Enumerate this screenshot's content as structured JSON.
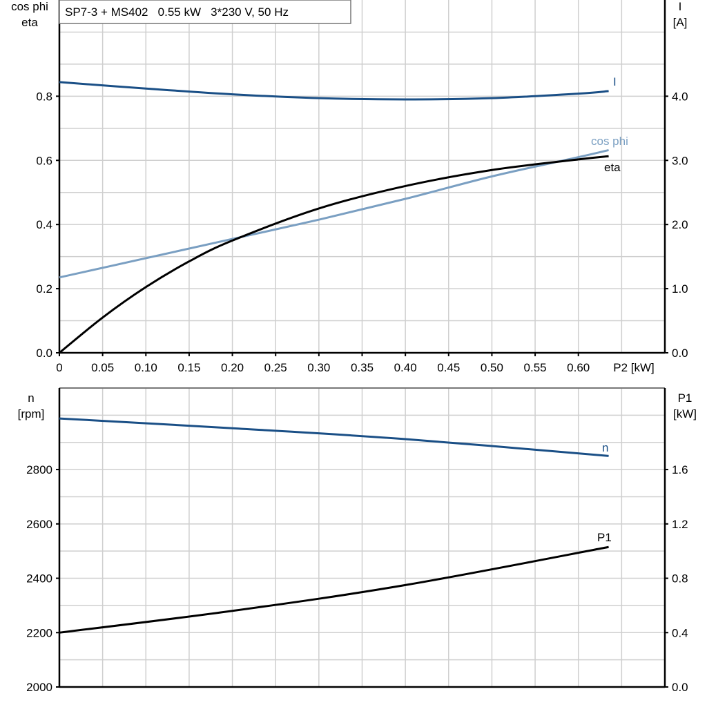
{
  "chart_data": [
    {
      "type": "line",
      "title": "SP7-3 + MS402   0.55 kW   3*230 V, 50 Hz",
      "xlabel": "P2 [kW]",
      "ylabel_left": [
        "cos phi",
        "eta"
      ],
      "ylabel_right": [
        "I",
        "[A]"
      ],
      "xlim": [
        0,
        0.7
      ],
      "ylim_left": [
        0,
        1.1
      ],
      "ylim_right": [
        0,
        5.5
      ],
      "grid": true,
      "x_ticks": [
        "0",
        "0.05",
        "0.10",
        "0.15",
        "0.20",
        "0.25",
        "0.30",
        "0.35",
        "0.40",
        "0.45",
        "0.50",
        "0.55",
        "0.60"
      ],
      "y_ticks_left": [
        "0.0",
        "0.2",
        "0.4",
        "0.6",
        "0.8"
      ],
      "y_ticks_right": [
        "0.0",
        "1.0",
        "2.0",
        "3.0",
        "4.0"
      ],
      "series": [
        {
          "name": "I",
          "axis": "right",
          "color": "#1a4f86",
          "x": [
            0,
            0.1,
            0.2,
            0.3,
            0.4,
            0.5,
            0.6,
            0.635
          ],
          "y": [
            4.22,
            4.12,
            4.03,
            3.97,
            3.95,
            3.97,
            4.04,
            4.08
          ]
        },
        {
          "name": "cos phi",
          "axis": "left",
          "color": "#7a9fc2",
          "x": [
            0,
            0.1,
            0.2,
            0.3,
            0.4,
            0.5,
            0.6,
            0.635
          ],
          "y": [
            0.235,
            0.295,
            0.355,
            0.415,
            0.48,
            0.55,
            0.61,
            0.632
          ]
        },
        {
          "name": "eta",
          "axis": "left",
          "color": "#000000",
          "x": [
            0,
            0.05,
            0.1,
            0.15,
            0.2,
            0.3,
            0.4,
            0.5,
            0.6,
            0.635
          ],
          "y": [
            0,
            0.11,
            0.205,
            0.285,
            0.35,
            0.45,
            0.52,
            0.57,
            0.603,
            0.613
          ]
        }
      ]
    },
    {
      "type": "line",
      "ylabel_left": [
        "n",
        "[rpm]"
      ],
      "ylabel_right": [
        "P1",
        "[kW]"
      ],
      "xlim": [
        0,
        0.7
      ],
      "ylim_left": [
        2000,
        3100
      ],
      "ylim_right": [
        0,
        2.2
      ],
      "grid": true,
      "y_ticks_left": [
        "2000",
        "2200",
        "2400",
        "2600",
        "2800"
      ],
      "y_ticks_right": [
        "0.0",
        "0.4",
        "0.8",
        "1.2",
        "1.6"
      ],
      "series": [
        {
          "name": "n",
          "axis": "left",
          "color": "#1a4f86",
          "x": [
            0,
            0.2,
            0.4,
            0.635
          ],
          "y": [
            2988,
            2952,
            2912,
            2850
          ]
        },
        {
          "name": "P1",
          "axis": "right",
          "color": "#000000",
          "x": [
            0,
            0.2,
            0.4,
            0.635
          ],
          "y": [
            0.4,
            0.56,
            0.75,
            1.03
          ]
        }
      ]
    }
  ]
}
